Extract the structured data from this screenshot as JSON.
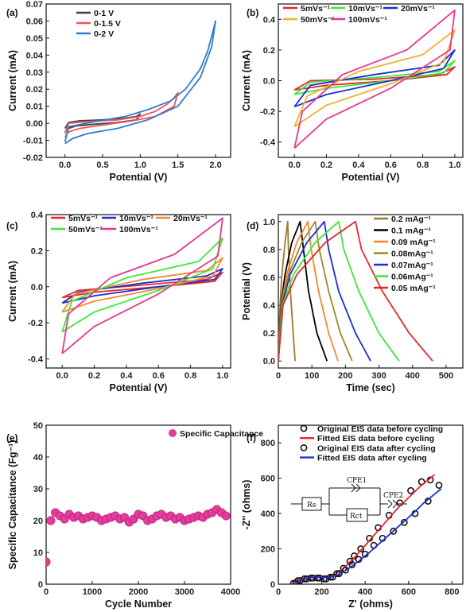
{
  "chart_data": [
    {
      "id": "a",
      "panel_label": "(a)",
      "type": "line",
      "xlabel": "Potential (V)",
      "ylabel": "Current (mA)",
      "xlim": [
        -0.25,
        2.2
      ],
      "ylim": [
        -0.02,
        0.07
      ],
      "xticks": [
        0.0,
        0.5,
        1.0,
        1.5,
        2.0
      ],
      "xtick_labels": [
        "0.0",
        "0.5",
        "1.0",
        "1.5",
        "2.0"
      ],
      "yticks": [
        -0.02,
        -0.01,
        0.0,
        0.01,
        0.02,
        0.03,
        0.04,
        0.05,
        0.06,
        0.07
      ],
      "ytick_labels": [
        "-0.02",
        "-0.01",
        "0.00",
        "0.01",
        "0.02",
        "0.03",
        "0.04",
        "0.05",
        "0.06",
        "0.07"
      ],
      "legend_position": "top-left",
      "series": [
        {
          "name": "0-1 V",
          "color": "#404040",
          "x": [
            0.0,
            0.05,
            0.2,
            0.5,
            0.8,
            0.95,
            1.0,
            0.95,
            0.7,
            0.4,
            0.15,
            0.05,
            0.0
          ],
          "y": [
            -0.003,
            0.0005,
            0.0015,
            0.002,
            0.003,
            0.004,
            0.0055,
            0.002,
            0.0005,
            -0.0005,
            -0.0015,
            -0.003,
            -0.005
          ]
        },
        {
          "name": "0-1.5 V",
          "color": "#f05454",
          "x": [
            0.0,
            0.05,
            0.3,
            0.7,
            1.0,
            1.2,
            1.35,
            1.45,
            1.5,
            1.45,
            1.2,
            0.9,
            0.5,
            0.2,
            0.05,
            0.0
          ],
          "y": [
            -0.006,
            0.0,
            0.001,
            0.002,
            0.004,
            0.007,
            0.011,
            0.015,
            0.018,
            0.01,
            0.004,
            0.0015,
            -0.001,
            -0.003,
            -0.005,
            -0.008
          ]
        },
        {
          "name": "0-2 V",
          "color": "#2f7ccb",
          "x": [
            0.0,
            0.05,
            0.4,
            0.8,
            1.1,
            1.4,
            1.6,
            1.8,
            1.9,
            2.0,
            1.95,
            1.8,
            1.5,
            1.1,
            0.7,
            0.3,
            0.1,
            0.0
          ],
          "y": [
            -0.011,
            -0.002,
            0.001,
            0.004,
            0.008,
            0.013,
            0.02,
            0.032,
            0.043,
            0.06,
            0.045,
            0.027,
            0.01,
            0.002,
            -0.003,
            -0.006,
            -0.009,
            -0.012
          ]
        }
      ]
    },
    {
      "id": "b",
      "panel_label": "(b)",
      "type": "line",
      "xlabel": "Potential (V)",
      "ylabel": "Current (mA)",
      "xlim": [
        -0.1,
        1.05
      ],
      "ylim": [
        -0.5,
        0.5
      ],
      "xticks": [
        0.0,
        0.2,
        0.4,
        0.6,
        0.8,
        1.0
      ],
      "xtick_labels": [
        "0.0",
        "0.2",
        "0.4",
        "0.6",
        "0.8",
        "1.0"
      ],
      "yticks": [
        -0.4,
        -0.2,
        0.0,
        0.2,
        0.4
      ],
      "ytick_labels": [
        "-0.4",
        "-0.2",
        "0.0",
        "0.2",
        "0.4"
      ],
      "legend_position": "top",
      "series": [
        {
          "name": "5mVs⁻¹",
          "color": "#e8262a",
          "x": [
            0.0,
            0.1,
            0.5,
            0.9,
            1.0,
            0.95,
            0.6,
            0.2,
            0.0
          ],
          "y": [
            -0.06,
            0.0,
            0.01,
            0.04,
            0.09,
            0.04,
            0.0,
            -0.03,
            -0.06
          ]
        },
        {
          "name": "10mVs⁻¹",
          "color": "#3be83b",
          "x": [
            0.0,
            0.1,
            0.5,
            0.9,
            1.0,
            0.93,
            0.6,
            0.2,
            0.0
          ],
          "y": [
            -0.09,
            -0.01,
            0.02,
            0.06,
            0.13,
            0.05,
            0.0,
            -0.05,
            -0.09
          ]
        },
        {
          "name": "20mVs⁻¹",
          "color": "#1c2fd0",
          "x": [
            0.0,
            0.1,
            0.5,
            0.9,
            1.0,
            0.93,
            0.6,
            0.2,
            0.0
          ],
          "y": [
            -0.17,
            -0.03,
            0.04,
            0.1,
            0.2,
            0.08,
            0.0,
            -0.09,
            -0.17
          ]
        },
        {
          "name": "50mVs⁻¹",
          "color": "#f0b12e",
          "x": [
            0.0,
            0.08,
            0.4,
            0.8,
            1.0,
            0.93,
            0.6,
            0.2,
            0.0
          ],
          "y": [
            -0.3,
            -0.1,
            0.06,
            0.17,
            0.33,
            0.12,
            -0.02,
            -0.16,
            -0.3
          ]
        },
        {
          "name": "100mVs⁻¹",
          "color": "#e8368f",
          "x": [
            0.0,
            0.05,
            0.3,
            0.7,
            1.0,
            0.97,
            0.6,
            0.2,
            0.0
          ],
          "y": [
            -0.44,
            -0.2,
            0.04,
            0.2,
            0.46,
            0.2,
            -0.05,
            -0.25,
            -0.44
          ]
        }
      ]
    },
    {
      "id": "c",
      "panel_label": "(c)",
      "type": "line",
      "xlabel": "Potential (V)",
      "ylabel": "Current (mA)",
      "xlim": [
        -0.1,
        1.05
      ],
      "ylim": [
        -0.45,
        0.4
      ],
      "xticks": [
        0.0,
        0.2,
        0.4,
        0.6,
        0.8,
        1.0
      ],
      "xtick_labels": [
        "0.0",
        "0.2",
        "0.4",
        "0.6",
        "0.8",
        "1.0"
      ],
      "yticks": [
        -0.4,
        -0.2,
        0.0,
        0.2,
        0.4
      ],
      "ytick_labels": [
        "-0.4",
        "-0.2",
        "0.0",
        "0.2",
        "0.4"
      ],
      "legend_position": "top",
      "series": [
        {
          "name": "5mVs⁻¹",
          "color": "#e8262a",
          "x": [
            0.0,
            0.1,
            0.5,
            0.9,
            1.0,
            0.95,
            0.6,
            0.2,
            0.0
          ],
          "y": [
            -0.06,
            -0.02,
            0.01,
            0.04,
            0.08,
            0.03,
            0.0,
            -0.03,
            -0.06
          ]
        },
        {
          "name": "10mVs⁻¹",
          "color": "#1c2fd0",
          "x": [
            0.0,
            0.1,
            0.5,
            0.9,
            1.0,
            0.95,
            0.6,
            0.2,
            0.0
          ],
          "y": [
            -0.09,
            -0.03,
            0.02,
            0.06,
            0.1,
            0.04,
            0.0,
            -0.05,
            -0.09
          ]
        },
        {
          "name": "20mVs⁻¹",
          "color": "#f5882a",
          "x": [
            0.0,
            0.08,
            0.5,
            0.9,
            1.0,
            0.94,
            0.6,
            0.2,
            0.0
          ],
          "y": [
            -0.14,
            -0.04,
            0.04,
            0.09,
            0.16,
            0.06,
            -0.01,
            -0.08,
            -0.14
          ]
        },
        {
          "name": "50mVs⁻¹",
          "color": "#3be83b",
          "x": [
            0.0,
            0.06,
            0.4,
            0.85,
            1.0,
            0.94,
            0.6,
            0.2,
            0.0
          ],
          "y": [
            -0.25,
            -0.08,
            0.05,
            0.14,
            0.27,
            0.1,
            -0.02,
            -0.14,
            -0.25
          ]
        },
        {
          "name": "100mVs⁻¹",
          "color": "#e8368f",
          "x": [
            0.0,
            0.04,
            0.3,
            0.7,
            1.0,
            0.97,
            0.6,
            0.2,
            0.0
          ],
          "y": [
            -0.37,
            -0.15,
            0.05,
            0.18,
            0.38,
            0.17,
            -0.04,
            -0.22,
            -0.37
          ]
        }
      ]
    },
    {
      "id": "d",
      "panel_label": "(d)",
      "type": "line",
      "xlabel": "Time (sec)",
      "ylabel": "Potential (V)",
      "xlim": [
        0,
        550
      ],
      "ylim": [
        -0.05,
        1.05
      ],
      "xticks": [
        0,
        100,
        200,
        300,
        400,
        500
      ],
      "xtick_labels": [
        "0",
        "100",
        "200",
        "300",
        "400",
        "500"
      ],
      "yticks": [
        0.0,
        0.2,
        0.4,
        0.6,
        0.8,
        1.0
      ],
      "ytick_labels": [
        "0.0",
        "0.2",
        "0.4",
        "0.6",
        "0.8",
        "1.0"
      ],
      "legend_position": "right",
      "series": [
        {
          "name": "0.2 mAg⁻¹",
          "color": "#a0782a",
          "x": [
            0,
            4,
            10,
            20,
            28,
            30,
            36,
            44,
            50
          ],
          "y": [
            0.0,
            0.35,
            0.6,
            0.85,
            1.0,
            0.8,
            0.5,
            0.2,
            0.0
          ]
        },
        {
          "name": "0.1 mAg⁻¹",
          "color": "#000000",
          "x": [
            0,
            8,
            20,
            40,
            65,
            75,
            90,
            115,
            145
          ],
          "y": [
            0.0,
            0.4,
            0.62,
            0.85,
            1.0,
            0.8,
            0.5,
            0.2,
            0.0
          ]
        },
        {
          "name": "0.09 mAg⁻¹",
          "color": "#f5882a",
          "x": [
            0,
            9,
            25,
            55,
            88,
            98,
            120,
            150,
            178
          ],
          "y": [
            0.0,
            0.4,
            0.62,
            0.85,
            1.0,
            0.8,
            0.5,
            0.2,
            0.0
          ]
        },
        {
          "name": "0.08mAg⁻¹",
          "color": "#9a8a2a",
          "x": [
            0,
            10,
            30,
            70,
            110,
            122,
            150,
            185,
            220
          ],
          "y": [
            0.0,
            0.4,
            0.62,
            0.85,
            1.0,
            0.8,
            0.5,
            0.2,
            0.0
          ]
        },
        {
          "name": "0.07mAg⁻¹",
          "color": "#1c2fd0",
          "x": [
            0,
            11,
            35,
            85,
            137,
            150,
            180,
            230,
            275
          ],
          "y": [
            0.0,
            0.4,
            0.62,
            0.85,
            1.0,
            0.8,
            0.5,
            0.2,
            0.0
          ]
        },
        {
          "name": "0.06mAg⁻¹",
          "color": "#3be83b",
          "x": [
            0,
            12,
            45,
            110,
            180,
            195,
            240,
            300,
            360
          ],
          "y": [
            0.0,
            0.4,
            0.62,
            0.85,
            1.0,
            0.8,
            0.5,
            0.2,
            0.0
          ]
        },
        {
          "name": "0.05 mAg⁻¹",
          "color": "#e8262a",
          "x": [
            0,
            14,
            55,
            140,
            230,
            248,
            310,
            390,
            460
          ],
          "y": [
            0.0,
            0.4,
            0.62,
            0.85,
            1.0,
            0.8,
            0.5,
            0.2,
            0.0
          ]
        }
      ]
    },
    {
      "id": "e",
      "panel_label": "(e)",
      "type": "scatter",
      "xlabel": "Cycle Number",
      "ylabel": "Specific Capacitance (Fg⁻¹)",
      "xlim": [
        0,
        4000
      ],
      "ylim": [
        0,
        50
      ],
      "xticks": [
        0,
        1000,
        2000,
        3000,
        4000
      ],
      "xtick_labels": [
        "0",
        "1000",
        "2000",
        "3000",
        "4000"
      ],
      "yticks": [
        0,
        10,
        20,
        30,
        40,
        50
      ],
      "ytick_labels": [
        "0",
        "10",
        "20",
        "30",
        "40",
        "50"
      ],
      "legend_position": "top-right",
      "series": [
        {
          "name": "Specific Capacitance",
          "color": "#e23c9c",
          "x": [
            0,
            100,
            200,
            300,
            400,
            500,
            600,
            700,
            800,
            900,
            1000,
            1100,
            1200,
            1300,
            1400,
            1500,
            1600,
            1700,
            1800,
            1900,
            2000,
            2100,
            2200,
            2300,
            2400,
            2500,
            2600,
            2700,
            2800,
            2900,
            3000,
            3100,
            3200,
            3300,
            3400,
            3500,
            3600,
            3700,
            3800,
            3900
          ],
          "y": [
            7,
            20,
            22.5,
            21.5,
            20.5,
            22,
            21,
            21.5,
            20.5,
            21,
            21.5,
            21,
            20,
            20.5,
            21,
            21.5,
            20.5,
            21,
            19.5,
            20.5,
            22,
            21.5,
            20,
            20.5,
            21.5,
            22,
            21,
            21.5,
            20.5,
            21,
            20,
            20.5,
            21,
            21.5,
            21,
            22,
            22.5,
            23.5,
            22.5,
            21.5
          ]
        }
      ]
    },
    {
      "id": "f",
      "panel_label": "(f)",
      "type": "scatter",
      "xlabel": "Z' (ohms)",
      "ylabel": "-Z'' (ohms)",
      "xlim": [
        0,
        850
      ],
      "ylim": [
        0,
        900
      ],
      "xticks": [
        0,
        200,
        400,
        600,
        800
      ],
      "xtick_labels": [
        "0",
        "200",
        "400",
        "600",
        "800"
      ],
      "yticks": [
        0,
        200,
        400,
        600,
        800
      ],
      "ytick_labels": [
        "0",
        "200",
        "400",
        "600",
        "800"
      ],
      "legend_position": "top",
      "circuit_labels": [
        "Rs",
        "CPE1",
        "CPE2",
        "Rct"
      ],
      "series": [
        {
          "name": "Original EIS data before cycling",
          "marker": "circle",
          "color": "#111111",
          "x": [
            70,
            90,
            120,
            150,
            180,
            210,
            240,
            270,
            300,
            330,
            350,
            380,
            420,
            460,
            510,
            560,
            610,
            660,
            700
          ],
          "y": [
            5,
            20,
            30,
            35,
            35,
            30,
            40,
            60,
            90,
            130,
            160,
            200,
            260,
            320,
            390,
            460,
            530,
            580,
            590
          ]
        },
        {
          "name": "Fitted EIS data before cycling",
          "marker": "line",
          "color": "#e8262a",
          "x": [
            65,
            100,
            140,
            180,
            220,
            260,
            300,
            350,
            400,
            450,
            500,
            550,
            600,
            650,
            700,
            720
          ],
          "y": [
            0,
            25,
            40,
            42,
            40,
            55,
            90,
            150,
            220,
            290,
            360,
            430,
            490,
            550,
            600,
            620
          ]
        },
        {
          "name": "Original EIS data after cycling",
          "marker": "circle",
          "color": "#111111",
          "x": [
            80,
            100,
            130,
            160,
            190,
            220,
            250,
            280,
            310,
            340,
            370,
            400,
            440,
            480,
            530,
            580,
            630,
            690,
            740
          ],
          "y": [
            5,
            20,
            30,
            35,
            35,
            30,
            40,
            60,
            80,
            110,
            140,
            170,
            220,
            260,
            300,
            350,
            400,
            470,
            560
          ]
        },
        {
          "name": "Fitted EIS data after cycling",
          "marker": "line",
          "color": "#1c2fd0",
          "x": [
            75,
            110,
            150,
            190,
            230,
            270,
            320,
            370,
            420,
            470,
            520,
            570,
            620,
            670,
            720,
            750
          ],
          "y": [
            0,
            25,
            38,
            40,
            38,
            50,
            85,
            130,
            180,
            235,
            290,
            345,
            400,
            460,
            510,
            540
          ]
        }
      ]
    }
  ]
}
